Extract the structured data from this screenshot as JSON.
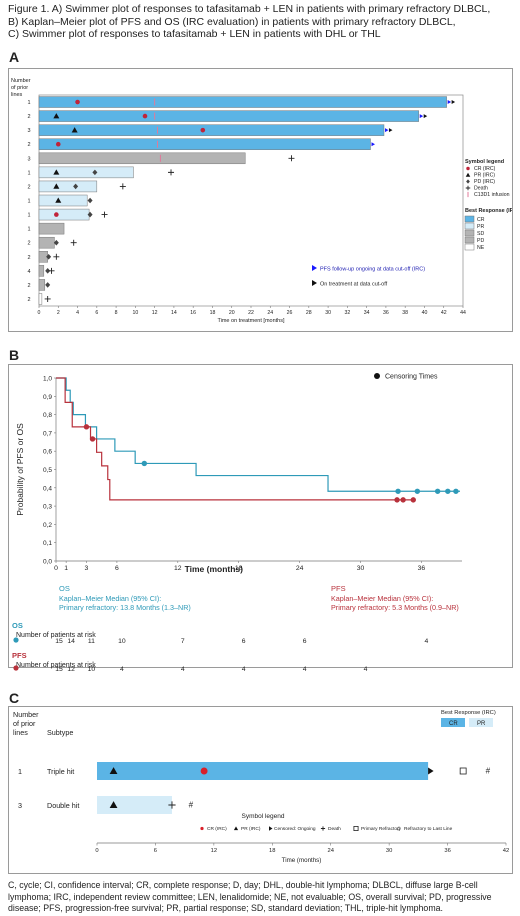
{
  "caption": {
    "lines": [
      "Figure 1. A) Swimmer plot of responses to tafasitamab + LEN in patients with primary refractory DLBCL,",
      "B) Kaplan–Meier plot of PFS and OS (IRC evaluation) in patients with primary refractory DLBCL,",
      "C) Swimmer plot of responses to tafasitamab + LEN in patients with DHL or THL"
    ]
  },
  "labels": {
    "A": "A",
    "B": "B",
    "C": "C"
  },
  "chart_data": [
    {
      "id": "A",
      "type": "bar",
      "orientation": "horizontal",
      "ylabel_lines": [
        "Number",
        "of prior",
        "lines"
      ],
      "xlabel": "Time on treatment [months]",
      "xlim": [
        0,
        44
      ],
      "xticks": [
        0,
        2,
        4,
        6,
        8,
        10,
        12,
        14,
        16,
        18,
        20,
        22,
        24,
        26,
        28,
        30,
        32,
        34,
        36,
        38,
        40,
        42,
        44
      ],
      "response_colors": {
        "CR": "#5bb4e5",
        "PR": "#d5ecf8",
        "SD": "#b3b3b3",
        "PD": "#b3b3b3",
        "NE": "#ffffff"
      },
      "bars": [
        {
          "prior_lines": "1",
          "end": 42.3,
          "response": "CR",
          "markers": [
            {
              "type": "CR",
              "x": 4
            },
            {
              "type": "C13D1",
              "x": 12
            }
          ],
          "arrows": "PFS_ontx"
        },
        {
          "prior_lines": "2",
          "end": 39.4,
          "response": "CR",
          "markers": [
            {
              "type": "PR",
              "x": 1.8
            },
            {
              "type": "CR",
              "x": 11
            },
            {
              "type": "C13D1",
              "x": 12
            }
          ],
          "arrows": "PFS_ontx"
        },
        {
          "prior_lines": "3",
          "end": 35.8,
          "response": "CR",
          "markers": [
            {
              "type": "PR",
              "x": 3.7
            },
            {
              "type": "C13D1",
              "x": 12.3
            },
            {
              "type": "CR",
              "x": 17
            }
          ],
          "arrows": "PFS_ontx"
        },
        {
          "prior_lines": "2",
          "end": 34.4,
          "response": "CR",
          "markers": [
            {
              "type": "CR",
              "x": 2
            },
            {
              "type": "C13D1",
              "x": 12.3
            }
          ],
          "arrows": "PFS"
        },
        {
          "prior_lines": "3",
          "end": 21.4,
          "response": "SD",
          "markers": [
            {
              "type": "C13D1",
              "x": 12.6
            }
          ],
          "death": 26.2,
          "arrows": ""
        },
        {
          "prior_lines": "1",
          "end": 9.8,
          "response": "PR",
          "markers": [
            {
              "type": "PR",
              "x": 1.8
            },
            {
              "type": "PD",
              "x": 5.8
            }
          ],
          "death": 13.7,
          "arrows": ""
        },
        {
          "prior_lines": "2",
          "end": 6.0,
          "response": "PR",
          "markers": [
            {
              "type": "PR",
              "x": 1.8
            },
            {
              "type": "PD",
              "x": 3.8
            }
          ],
          "death": 8.7,
          "arrows": ""
        },
        {
          "prior_lines": "1",
          "end": 5.0,
          "response": "PR",
          "markers": [
            {
              "type": "PR",
              "x": 2
            },
            {
              "type": "PD",
              "x": 5.3
            }
          ],
          "arrows": ""
        },
        {
          "prior_lines": "1",
          "end": 5.2,
          "response": "PR",
          "markers": [
            {
              "type": "CR",
              "x": 1.8
            },
            {
              "type": "PD",
              "x": 5.3
            }
          ],
          "death": 6.8,
          "arrows": ""
        },
        {
          "prior_lines": "1",
          "end": 2.6,
          "response": "SD",
          "markers": [],
          "arrows": ""
        },
        {
          "prior_lines": "2",
          "end": 1.6,
          "response": "SD",
          "markers": [
            {
              "type": "PD",
              "x": 1.8
            }
          ],
          "death": 3.6,
          "arrows": ""
        },
        {
          "prior_lines": "2",
          "end": 0.9,
          "response": "SD",
          "markers": [
            {
              "type": "PD",
              "x": 1.0
            }
          ],
          "death": 1.8,
          "arrows": ""
        },
        {
          "prior_lines": "4",
          "end": 0.5,
          "response": "SD",
          "markers": [
            {
              "type": "PD",
              "x": 0.9
            }
          ],
          "death": 1.3,
          "arrows": ""
        },
        {
          "prior_lines": "2",
          "end": 0.6,
          "response": "SD",
          "markers": [
            {
              "type": "PD",
              "x": 0.9
            }
          ],
          "arrows": ""
        },
        {
          "prior_lines": "2",
          "end": 0.3,
          "response": "NE",
          "markers": [],
          "death": 0.9,
          "arrows": ""
        }
      ],
      "symbol_legend": {
        "title": "Symbol legend",
        "items": [
          {
            "sym": "CR",
            "label": "CR (IRC)"
          },
          {
            "sym": "PR",
            "label": "PR (IRC)"
          },
          {
            "sym": "PD",
            "label": "PD (IRC)"
          },
          {
            "sym": "death",
            "label": "Death"
          },
          {
            "sym": "C13D1",
            "label": "C13D1 infusion"
          }
        ]
      },
      "response_legend": {
        "title": "Best Response (IRC)",
        "items": [
          "CR",
          "PR",
          "SD",
          "PD",
          "NE"
        ]
      },
      "arrow_legend": [
        {
          "sym": "blue",
          "label": "PFS follow-up ongoing at data cut-off (IRC)"
        },
        {
          "sym": "black",
          "label": "On treatment at data cut-off"
        }
      ],
      "colors": {
        "CR_marker": "#c0243a",
        "pfs_arrow": "#1a1aff",
        "ontx_arrow": "#111111",
        "C13D1": "#e07a9a"
      }
    },
    {
      "id": "B",
      "type": "line",
      "ylabel": "Probability of PFS or OS",
      "xlabel": "Time (months)",
      "xlim": [
        0,
        40
      ],
      "ylim": [
        0,
        1.0
      ],
      "xticks": [
        0,
        1,
        3,
        6,
        12,
        18,
        24,
        30,
        36
      ],
      "yticks": [
        0.0,
        0.1,
        0.2,
        0.3,
        0.4,
        0.5,
        0.6,
        0.7,
        0.8,
        0.9,
        1.0
      ],
      "ytick_labels": [
        "0,0",
        "0,1",
        "0,2",
        "0,3",
        "0,4",
        "0,5",
        "0,6",
        "0,7",
        "0,8",
        "0,9",
        "1,0"
      ],
      "legend": {
        "label": "Censoring Times",
        "position": "top-right"
      },
      "series": [
        {
          "name": "OS",
          "color": "#2e9ab8",
          "steps": [
            [
              0,
              1.0
            ],
            [
              1.0,
              0.933
            ],
            [
              1.4,
              0.867
            ],
            [
              1.7,
              0.8
            ],
            [
              2.9,
              0.733
            ],
            [
              4.0,
              0.667
            ],
            [
              5.8,
              0.6
            ],
            [
              7.8,
              0.533
            ],
            [
              13.8,
              0.467
            ],
            [
              26.8,
              0.381
            ]
          ],
          "end": 39.8,
          "censors": [
            8.7,
            33.7,
            35.6,
            37.6,
            38.6,
            39.4
          ]
        },
        {
          "name": "PFS",
          "color": "#b8323c",
          "steps": [
            [
              0,
              1.0
            ],
            [
              0.9,
              0.867
            ],
            [
              1.6,
              0.733
            ],
            [
              3.4,
              0.667
            ],
            [
              4.0,
              0.594
            ],
            [
              4.5,
              0.52
            ],
            [
              5.1,
              0.445
            ],
            [
              5.3,
              0.334
            ]
          ],
          "end": 35.4,
          "censors": [
            3.0,
            3.6,
            33.6,
            34.2,
            35.2
          ]
        }
      ],
      "annotations": {
        "os": {
          "title": "OS",
          "line1": "Kaplan–Meier Median (95% CI):",
          "line2": "Primary refractory: 13.8 Months (1.3–NR)"
        },
        "pfs": {
          "title": "PFS",
          "line1": "Kaplan–Meier Median (95% CI):",
          "line2": "Primary refractory: 5.3 Months (0.9–NR)"
        }
      },
      "risk_table": {
        "title": "Number of patients at risk",
        "rows": [
          {
            "name": "OS",
            "color": "#2e9ab8",
            "values": [
              {
                "x": 0,
                "v": "15"
              },
              {
                "x": 1,
                "v": "14"
              },
              {
                "x": 3,
                "v": "11"
              },
              {
                "x": 6,
                "v": "10"
              },
              {
                "x": 12,
                "v": "7"
              },
              {
                "x": 18,
                "v": "6"
              },
              {
                "x": 24,
                "v": "6"
              },
              {
                "x": 36,
                "v": "4"
              }
            ]
          },
          {
            "name": "PFS",
            "color": "#b8323c",
            "values": [
              {
                "x": 0,
                "v": "15"
              },
              {
                "x": 1,
                "v": "12"
              },
              {
                "x": 3,
                "v": "10"
              },
              {
                "x": 6,
                "v": "4"
              },
              {
                "x": 12,
                "v": "4"
              },
              {
                "x": 18,
                "v": "4"
              },
              {
                "x": 24,
                "v": "4"
              },
              {
                "x": 30,
                "v": "4"
              }
            ]
          }
        ]
      }
    },
    {
      "id": "C",
      "type": "bar",
      "orientation": "horizontal",
      "header": {
        "col1_lines": [
          "Number",
          "of prior",
          "lines"
        ],
        "col2": "Subtype"
      },
      "xlabel": "Time (months)",
      "xlim": [
        0,
        42
      ],
      "xticks": [
        0,
        6,
        12,
        18,
        24,
        30,
        36,
        42
      ],
      "best_response": {
        "title": "Best Response (IRC)",
        "items": [
          {
            "label": "CR",
            "color": "#5bb4e5"
          },
          {
            "label": "PR",
            "color": "#d5ecf8"
          }
        ]
      },
      "bars": [
        {
          "prior_lines": "1",
          "subtype": "Triple hit",
          "end": 34.0,
          "response": "CR",
          "pr": 1.7,
          "cr": 11.0,
          "censor": 34.0,
          "primary_refractory": 37.6,
          "refractory_last": 40.2
        },
        {
          "prior_lines": "3",
          "subtype": "Double hit",
          "end": 7.7,
          "response": "PR",
          "pr": 1.7,
          "death": 7.7,
          "refractory_last": 9.7
        }
      ],
      "symbol_legend": {
        "title": "Symbol legend",
        "items": [
          {
            "sym": "CR",
            "label": "CR (IRC)"
          },
          {
            "sym": "PR",
            "label": "PR (IRC)"
          },
          {
            "sym": "censor",
            "label": "Censored: Ongoing"
          },
          {
            "sym": "death",
            "label": "Death"
          },
          {
            "sym": "square",
            "label": "Primary Refractory"
          },
          {
            "sym": "hash",
            "label": "Refractory to Last Line"
          }
        ]
      }
    }
  ],
  "footnote": "C, cycle; CI, confidence interval; CR, complete response; D, day; DHL, double-hit lymphoma; DLBCL, diffuse large B-cell lymphoma; IRC, independent review committee; LEN, lenalidomide; NE, not evaluable; OS, overall survival; PD, progressive disease; PFS, progression-free survival; PR, partial response; SD, standard deviation; THL, triple-hit lymphoma."
}
